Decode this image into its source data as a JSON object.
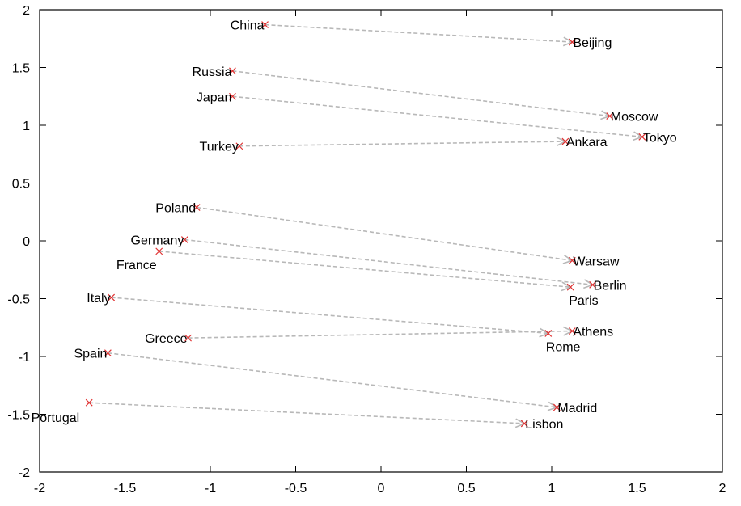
{
  "chart_data": {
    "type": "scatter",
    "title": "",
    "xlabel": "",
    "ylabel": "",
    "xlim": [
      -2,
      2
    ],
    "ylim": [
      -2,
      2
    ],
    "xticks": [
      "-2",
      "-1.5",
      "-1",
      "-0.5",
      "0",
      "0.5",
      "1",
      "1.5",
      "2"
    ],
    "yticks": [
      "2",
      "1.5",
      "1",
      "0.5",
      "0",
      "-0.5",
      "-1",
      "-1.5",
      "-2"
    ],
    "grid": false,
    "marker_color": "#e03030",
    "arrow_color": "#b8b8b8",
    "pairs": [
      {
        "country": "China",
        "cx": -0.68,
        "cy": 1.87,
        "capital": "Beijing",
        "kx": 1.12,
        "ky": 1.72
      },
      {
        "country": "Russia",
        "cx": -0.87,
        "cy": 1.47,
        "capital": "Moscow",
        "kx": 1.34,
        "ky": 1.08
      },
      {
        "country": "Japan",
        "cx": -0.87,
        "cy": 1.25,
        "capital": "Tokyo",
        "kx": 1.53,
        "ky": 0.9
      },
      {
        "country": "Turkey",
        "cx": -0.83,
        "cy": 0.82,
        "capital": "Ankara",
        "kx": 1.08,
        "ky": 0.86
      },
      {
        "country": "Poland",
        "cx": -1.08,
        "cy": 0.29,
        "capital": "Warsaw",
        "kx": 1.12,
        "ky": -0.17
      },
      {
        "country": "Germany",
        "cx": -1.15,
        "cy": 0.01,
        "capital": "Berlin",
        "kx": 1.24,
        "ky": -0.38
      },
      {
        "country": "France",
        "cx": -1.3,
        "cy": -0.09,
        "capital": "Paris",
        "kx": 1.11,
        "ky": -0.4
      },
      {
        "country": "Italy",
        "cx": -1.58,
        "cy": -0.49,
        "capital": "Rome",
        "kx": 0.98,
        "ky": -0.8
      },
      {
        "country": "Greece",
        "cx": -1.13,
        "cy": -0.84,
        "capital": "Athens",
        "kx": 1.12,
        "ky": -0.78
      },
      {
        "country": "Spain",
        "cx": -1.6,
        "cy": -0.97,
        "capital": "Madrid",
        "kx": 1.03,
        "ky": -1.44
      },
      {
        "country": "Portugal",
        "cx": -1.71,
        "cy": -1.4,
        "capital": "Lisbon",
        "kx": 0.84,
        "ky": -1.58
      }
    ]
  }
}
